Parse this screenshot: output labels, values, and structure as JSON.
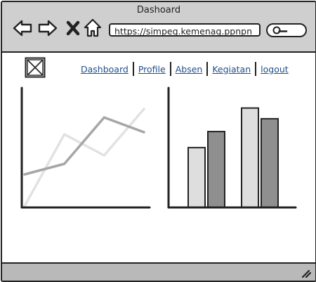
{
  "window": {
    "title": "Dashoard"
  },
  "toolbar": {
    "back_icon": "arrow-left-icon",
    "forward_icon": "arrow-right-icon",
    "close_icon": "x-icon",
    "home_icon": "home-icon",
    "url": "https://simpeg.kemenag.ppnpn",
    "search_icon": "search-icon"
  },
  "header": {
    "logo_icon": "image-placeholder-icon",
    "menu": [
      {
        "label": "Dashboard"
      },
      {
        "label": "Profile"
      },
      {
        "label": "Absen"
      },
      {
        "label": "Kegiatan"
      },
      {
        "label": "logout"
      }
    ]
  },
  "charts": [
    {
      "type": "line",
      "series": [
        {
          "color": "#e2e2e2",
          "values": [
            0,
            68,
            48,
            92
          ]
        },
        {
          "color": "#a6a6a6",
          "values": [
            30,
            40,
            84,
            70
          ]
        }
      ],
      "x": [
        0,
        1,
        2,
        3
      ],
      "ylim": [
        0,
        100
      ]
    },
    {
      "type": "bar",
      "series": [
        {
          "color": "#dedede",
          "values": [
            56,
            93
          ]
        },
        {
          "color": "#8f8f8f",
          "values": [
            71,
            83
          ]
        }
      ],
      "ylim": [
        0,
        100
      ]
    }
  ],
  "chart_data": [
    {
      "type": "line",
      "x": [
        0,
        1,
        2,
        3
      ],
      "series": [
        {
          "color": "#e2e2e2",
          "values": [
            0,
            68,
            48,
            92
          ]
        },
        {
          "color": "#a6a6a6",
          "values": [
            30,
            40,
            84,
            70
          ]
        }
      ],
      "ylim": [
        0,
        100
      ],
      "grid": false
    },
    {
      "type": "bar",
      "categories": [
        "",
        ""
      ],
      "series": [
        {
          "color": "#dedede",
          "values": [
            56,
            93
          ]
        },
        {
          "color": "#8f8f8f",
          "values": [
            71,
            83
          ]
        }
      ],
      "ylim": [
        0,
        100
      ],
      "grid": false
    }
  ],
  "footer": {
    "resize_icon": "resize-grip-icon"
  }
}
